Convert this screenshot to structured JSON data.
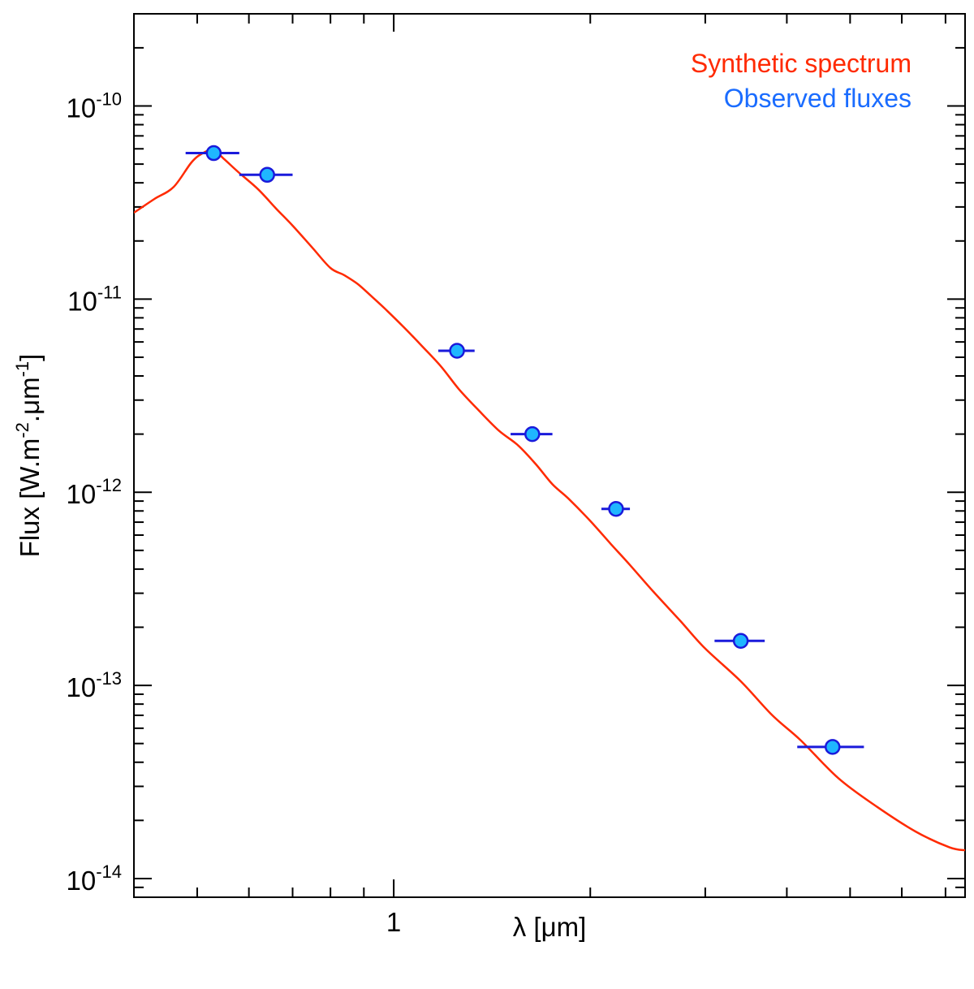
{
  "chart_data": {
    "type": "line",
    "xlabel": "λ [μm]",
    "ylabel": {
      "parts": [
        "Flux [W.m",
        "-2",
        ".μm",
        "-1",
        "]"
      ]
    },
    "x_scale": "log",
    "y_scale": "log",
    "xlim": [
      0.4,
      7.5
    ],
    "ylim": [
      8e-15,
      3e-10
    ],
    "x_tick_labels": [
      {
        "x": 1,
        "label": "1"
      }
    ],
    "y_tick_labels": [
      {
        "y": 1e-14,
        "base": "10",
        "exp": "-14"
      },
      {
        "y": 1e-13,
        "base": "10",
        "exp": "-13"
      },
      {
        "y": 1e-12,
        "base": "10",
        "exp": "-12"
      },
      {
        "y": 1e-11,
        "base": "10",
        "exp": "-11"
      },
      {
        "y": 1e-10,
        "base": "10",
        "exp": "-10"
      }
    ],
    "legend": {
      "placement": "top-right",
      "entries": [
        {
          "label": "Synthetic spectrum",
          "color": "#ff2a00"
        },
        {
          "label": "Observed fluxes",
          "color": "#1a6cff"
        }
      ]
    },
    "series": [
      {
        "name": "Synthetic spectrum",
        "kind": "line",
        "color": "#ff2a00",
        "x": [
          0.4,
          0.43,
          0.46,
          0.49,
          0.51,
          0.53,
          0.55,
          0.58,
          0.62,
          0.66,
          0.7,
          0.75,
          0.8,
          0.84,
          0.88,
          0.92,
          0.97,
          1.03,
          1.1,
          1.18,
          1.26,
          1.35,
          1.45,
          1.55,
          1.65,
          1.75,
          1.85,
          2.0,
          2.15,
          2.3,
          2.5,
          2.75,
          3.0,
          3.4,
          3.8,
          4.2,
          4.8,
          5.5,
          6.3,
          7.1,
          7.5
        ],
        "y": [
          2.8e-11,
          3.3e-11,
          3.8e-11,
          5.1e-11,
          5.7e-11,
          5.9e-11,
          5.3e-11,
          4.5e-11,
          3.7e-11,
          2.95e-11,
          2.4e-11,
          1.85e-11,
          1.45e-11,
          1.33e-11,
          1.2e-11,
          1.05e-11,
          8.9e-12,
          7.3e-12,
          5.8e-12,
          4.5e-12,
          3.4e-12,
          2.65e-12,
          2.08e-12,
          1.75e-12,
          1.4e-12,
          1.1e-12,
          9.3e-13,
          7.1e-13,
          5.4e-13,
          4.2e-13,
          3.05e-13,
          2.15e-13,
          1.55e-13,
          1.05e-13,
          7e-14,
          5.2e-14,
          3.3e-14,
          2.35e-14,
          1.75e-14,
          1.45e-14,
          1.4e-14
        ]
      },
      {
        "name": "Observed fluxes",
        "kind": "points",
        "color": "#1a6cff",
        "marker_fill": "#1fb6ff",
        "errorbar_color": "#1a1adb",
        "x": [
          0.53,
          0.64,
          1.25,
          1.63,
          2.19,
          3.4,
          4.7
        ],
        "y": [
          5.7e-11,
          4.4e-11,
          5.4e-12,
          2e-12,
          8.2e-13,
          1.7e-13,
          4.8e-14
        ],
        "x_err": [
          0.05,
          0.06,
          0.08,
          0.12,
          0.11,
          0.3,
          0.55
        ]
      }
    ]
  }
}
